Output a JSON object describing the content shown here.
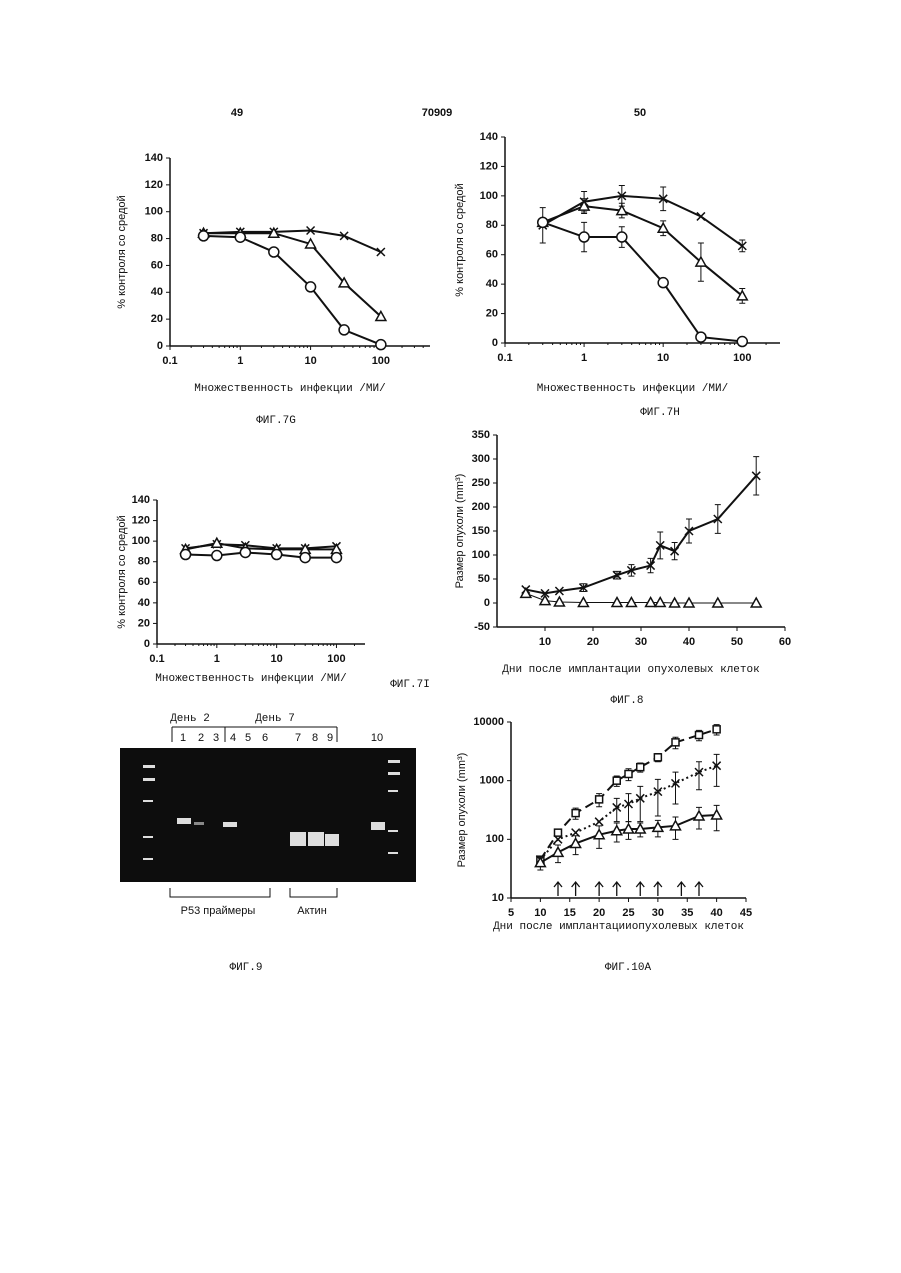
{
  "header": {
    "left": "49",
    "center": "70909",
    "right": "50"
  },
  "gel": {
    "day_a": "День 2",
    "day_b": "День 7",
    "lanes": [
      "1",
      "2",
      "3",
      "4",
      "5",
      "6",
      "7",
      "8",
      "9",
      "10"
    ],
    "primers": "P53 праймеры",
    "actin": "Актин",
    "caption": "ФИГ.9"
  },
  "chart_data": [
    {
      "type": "line",
      "caption": "ФИГ.7G",
      "x_label": "Множественность инфекции /МИ/",
      "y_label": "% контроля со средой",
      "xlog": true,
      "xlim": [
        0.1,
        500
      ],
      "xticks": [
        0.1,
        1,
        10,
        100
      ],
      "ylim": [
        0,
        140
      ],
      "yticks": [
        0,
        20,
        40,
        60,
        80,
        100,
        120,
        140
      ],
      "x": [
        0.3,
        1,
        3,
        10,
        30,
        100
      ],
      "series": [
        {
          "marker": "x",
          "dash": "solid",
          "color": "#111",
          "values": [
            84,
            85,
            85,
            86,
            82,
            70
          ]
        },
        {
          "marker": "triangle",
          "dash": "solid",
          "color": "#111",
          "values": [
            84,
            84,
            84,
            76,
            47,
            22
          ]
        },
        {
          "marker": "circle",
          "dash": "solid",
          "color": "#111",
          "values": [
            82,
            81,
            70,
            44,
            12,
            1
          ]
        }
      ]
    },
    {
      "type": "line",
      "caption": "ФИГ.7H",
      "x_label": "Множественность инфекции /МИ/",
      "y_label": "% контроля со средой",
      "xlog": true,
      "xlim": [
        0.1,
        300
      ],
      "xticks": [
        0.1,
        1,
        10,
        100
      ],
      "ylim": [
        0,
        140
      ],
      "yticks": [
        0,
        20,
        40,
        60,
        80,
        100,
        120,
        140
      ],
      "x": [
        0.3,
        1,
        3,
        10,
        30,
        100
      ],
      "series": [
        {
          "marker": "x",
          "dash": "solid",
          "color": "#111",
          "values": [
            80,
            96,
            100,
            98,
            86,
            66
          ],
          "errors": [
            12,
            7,
            7,
            8,
            0,
            4
          ]
        },
        {
          "marker": "triangle",
          "dash": "solid",
          "color": "#111",
          "values": [
            82,
            93,
            90,
            78,
            55,
            32
          ],
          "errors": [
            0,
            5,
            5,
            5,
            13,
            5
          ]
        },
        {
          "marker": "circle",
          "dash": "solid",
          "color": "#111",
          "values": [
            82,
            72,
            72,
            41,
            4,
            1
          ],
          "errors": [
            0,
            10,
            7,
            0,
            0,
            0
          ]
        }
      ]
    },
    {
      "type": "line",
      "caption": "ФИГ.7I",
      "x_label": "Множественность инфекции /МИ/",
      "y_label": "% контроля со средой",
      "xlog": true,
      "xlim": [
        0.1,
        300
      ],
      "xticks": [
        0.1,
        1,
        10,
        100
      ],
      "ylim": [
        0,
        140
      ],
      "yticks": [
        0,
        20,
        40,
        60,
        80,
        100,
        120,
        140
      ],
      "x": [
        0.3,
        1,
        3,
        10,
        30,
        100
      ],
      "series": [
        {
          "marker": "x",
          "dash": "solid",
          "color": "#111",
          "values": [
            93,
            97,
            96,
            93,
            93,
            95
          ]
        },
        {
          "marker": "triangle",
          "dash": "solid",
          "color": "#111",
          "values": [
            92,
            98,
            93,
            92,
            92,
            92
          ]
        },
        {
          "marker": "circle",
          "dash": "solid",
          "color": "#111",
          "values": [
            87,
            86,
            89,
            87,
            84,
            84
          ]
        }
      ]
    },
    {
      "type": "line",
      "caption": "ФИГ.8",
      "x_label": "Дни после имплантации опухолевых клеток",
      "y_label": "Размер опухоли (mm³)",
      "xlim": [
        0,
        60
      ],
      "xticks": [
        10,
        20,
        30,
        40,
        50,
        60
      ],
      "ylim": [
        -50,
        350
      ],
      "yticks": [
        -50,
        0,
        50,
        100,
        150,
        200,
        250,
        300,
        350
      ],
      "x": [
        6,
        10,
        13,
        18,
        25,
        28,
        32,
        34,
        37,
        40,
        46,
        54
      ],
      "series": [
        {
          "marker": "x",
          "dash": "solid",
          "color": "#111",
          "values": [
            28,
            20,
            25,
            32,
            58,
            68,
            78,
            120,
            108,
            150,
            175,
            265
          ],
          "errors": [
            0,
            0,
            0,
            8,
            8,
            12,
            15,
            28,
            18,
            25,
            30,
            40
          ]
        },
        {
          "marker": "triangle",
          "dash": "thin",
          "color": "#111",
          "values": [
            20,
            5,
            2,
            1,
            1,
            1,
            1,
            1,
            0,
            0,
            0,
            0
          ]
        }
      ]
    },
    {
      "type": "line",
      "caption": "ФИГ.10A",
      "x_label": "Дни после имплантацииопухолевых клеток",
      "y_label": "Размер опухоли (mm³)",
      "ylog": true,
      "xlim": [
        5,
        45
      ],
      "xticks": [
        5,
        10,
        15,
        20,
        25,
        30,
        35,
        40,
        45
      ],
      "ylim": [
        10,
        10000
      ],
      "yticks": [
        10,
        100,
        1000,
        10000
      ],
      "x": [
        10,
        13,
        16,
        20,
        23,
        25,
        27,
        30,
        33,
        37,
        40
      ],
      "arrows_x": [
        13,
        16,
        20,
        23,
        27,
        30,
        34,
        37
      ],
      "series": [
        {
          "marker": "square",
          "dash": "dashed",
          "color": "#111",
          "values": [
            45,
            130,
            280,
            480,
            1000,
            1300,
            1700,
            2500,
            4500,
            6000,
            7500
          ],
          "errors": [
            0,
            0,
            60,
            120,
            200,
            300,
            300,
            400,
            1000,
            1200,
            1500
          ]
        },
        {
          "marker": "x",
          "dash": "dotted",
          "color": "#111",
          "values": [
            45,
            100,
            130,
            200,
            350,
            400,
            500,
            650,
            900,
            1400,
            1800
          ],
          "errors": [
            0,
            0,
            0,
            0,
            150,
            200,
            300,
            400,
            500,
            700,
            1000
          ]
        },
        {
          "marker": "triangle",
          "dash": "solid",
          "color": "#111",
          "values": [
            40,
            60,
            85,
            120,
            140,
            150,
            150,
            160,
            170,
            250,
            260
          ],
          "errors": [
            10,
            20,
            30,
            50,
            50,
            50,
            40,
            50,
            70,
            100,
            120
          ]
        }
      ]
    }
  ]
}
